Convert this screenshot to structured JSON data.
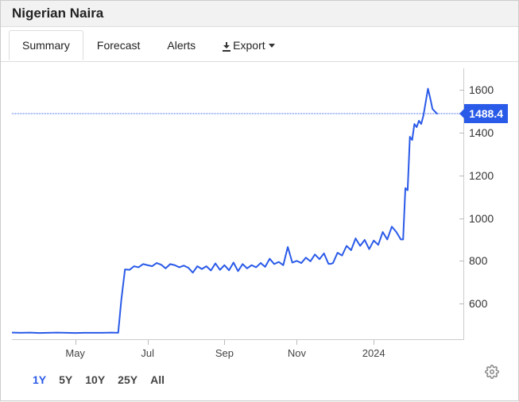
{
  "title": "Nigerian Naira",
  "tabs": [
    {
      "label": "Summary",
      "active": true
    },
    {
      "label": "Forecast",
      "active": false
    },
    {
      "label": "Alerts",
      "active": false
    },
    {
      "label": "Export",
      "active": false,
      "is_export": true
    }
  ],
  "chart": {
    "type": "line",
    "line_color": "#2a5ae8",
    "background_color": "#ffffff",
    "current_value": "1488.4",
    "current_y": 1488.4,
    "ylim": [
      430,
      1700
    ],
    "yticks": [
      600,
      800,
      1000,
      1200,
      1400,
      1600
    ],
    "xlim": [
      0,
      100
    ],
    "xticks": [
      {
        "x": 14,
        "label": "May"
      },
      {
        "x": 30,
        "label": "Jul"
      },
      {
        "x": 47,
        "label": "Sep"
      },
      {
        "x": 63,
        "label": "Nov"
      },
      {
        "x": 80,
        "label": "2024"
      }
    ],
    "series": [
      [
        0,
        465
      ],
      [
        2,
        464
      ],
      [
        4,
        465
      ],
      [
        6,
        463
      ],
      [
        8,
        464
      ],
      [
        10,
        465
      ],
      [
        12,
        464
      ],
      [
        14,
        463
      ],
      [
        16,
        464
      ],
      [
        18,
        464
      ],
      [
        20,
        464
      ],
      [
        22,
        465
      ],
      [
        23.5,
        464
      ],
      [
        24.2,
        620
      ],
      [
        25,
        760
      ],
      [
        26,
        758
      ],
      [
        27,
        775
      ],
      [
        28,
        770
      ],
      [
        29,
        785
      ],
      [
        30,
        780
      ],
      [
        31,
        775
      ],
      [
        32,
        790
      ],
      [
        33,
        782
      ],
      [
        34,
        765
      ],
      [
        35,
        785
      ],
      [
        36,
        780
      ],
      [
        37,
        770
      ],
      [
        38,
        778
      ],
      [
        39,
        768
      ],
      [
        40,
        745
      ],
      [
        41,
        775
      ],
      [
        42,
        762
      ],
      [
        43,
        775
      ],
      [
        44,
        755
      ],
      [
        45,
        788
      ],
      [
        46,
        758
      ],
      [
        47,
        780
      ],
      [
        48,
        756
      ],
      [
        49,
        792
      ],
      [
        50,
        752
      ],
      [
        51,
        785
      ],
      [
        52,
        765
      ],
      [
        53,
        780
      ],
      [
        54,
        770
      ],
      [
        55,
        790
      ],
      [
        56,
        772
      ],
      [
        57,
        810
      ],
      [
        58,
        785
      ],
      [
        59,
        795
      ],
      [
        60,
        780
      ],
      [
        61,
        865
      ],
      [
        62,
        792
      ],
      [
        63,
        800
      ],
      [
        64,
        790
      ],
      [
        65,
        815
      ],
      [
        66,
        798
      ],
      [
        67,
        830
      ],
      [
        68,
        808
      ],
      [
        69,
        835
      ],
      [
        70,
        786
      ],
      [
        70.5,
        786
      ],
      [
        71,
        790
      ],
      [
        72,
        838
      ],
      [
        73,
        825
      ],
      [
        74,
        870
      ],
      [
        75,
        850
      ],
      [
        76,
        905
      ],
      [
        77,
        870
      ],
      [
        78,
        898
      ],
      [
        79,
        855
      ],
      [
        80,
        895
      ],
      [
        81,
        875
      ],
      [
        82,
        935
      ],
      [
        83,
        900
      ],
      [
        84,
        960
      ],
      [
        85,
        935
      ],
      [
        86,
        900
      ],
      [
        86.5,
        900
      ],
      [
        87,
        1140
      ],
      [
        87.5,
        1130
      ],
      [
        88,
        1380
      ],
      [
        88.5,
        1365
      ],
      [
        89,
        1440
      ],
      [
        89.5,
        1425
      ],
      [
        90,
        1455
      ],
      [
        90.5,
        1440
      ],
      [
        91,
        1480
      ],
      [
        92,
        1605
      ],
      [
        92.5,
        1560
      ],
      [
        93,
        1510
      ],
      [
        94,
        1488
      ]
    ]
  },
  "ranges": [
    {
      "label": "1Y",
      "active": true
    },
    {
      "label": "5Y",
      "active": false
    },
    {
      "label": "10Y",
      "active": false
    },
    {
      "label": "25Y",
      "active": false
    },
    {
      "label": "All",
      "active": false
    }
  ]
}
